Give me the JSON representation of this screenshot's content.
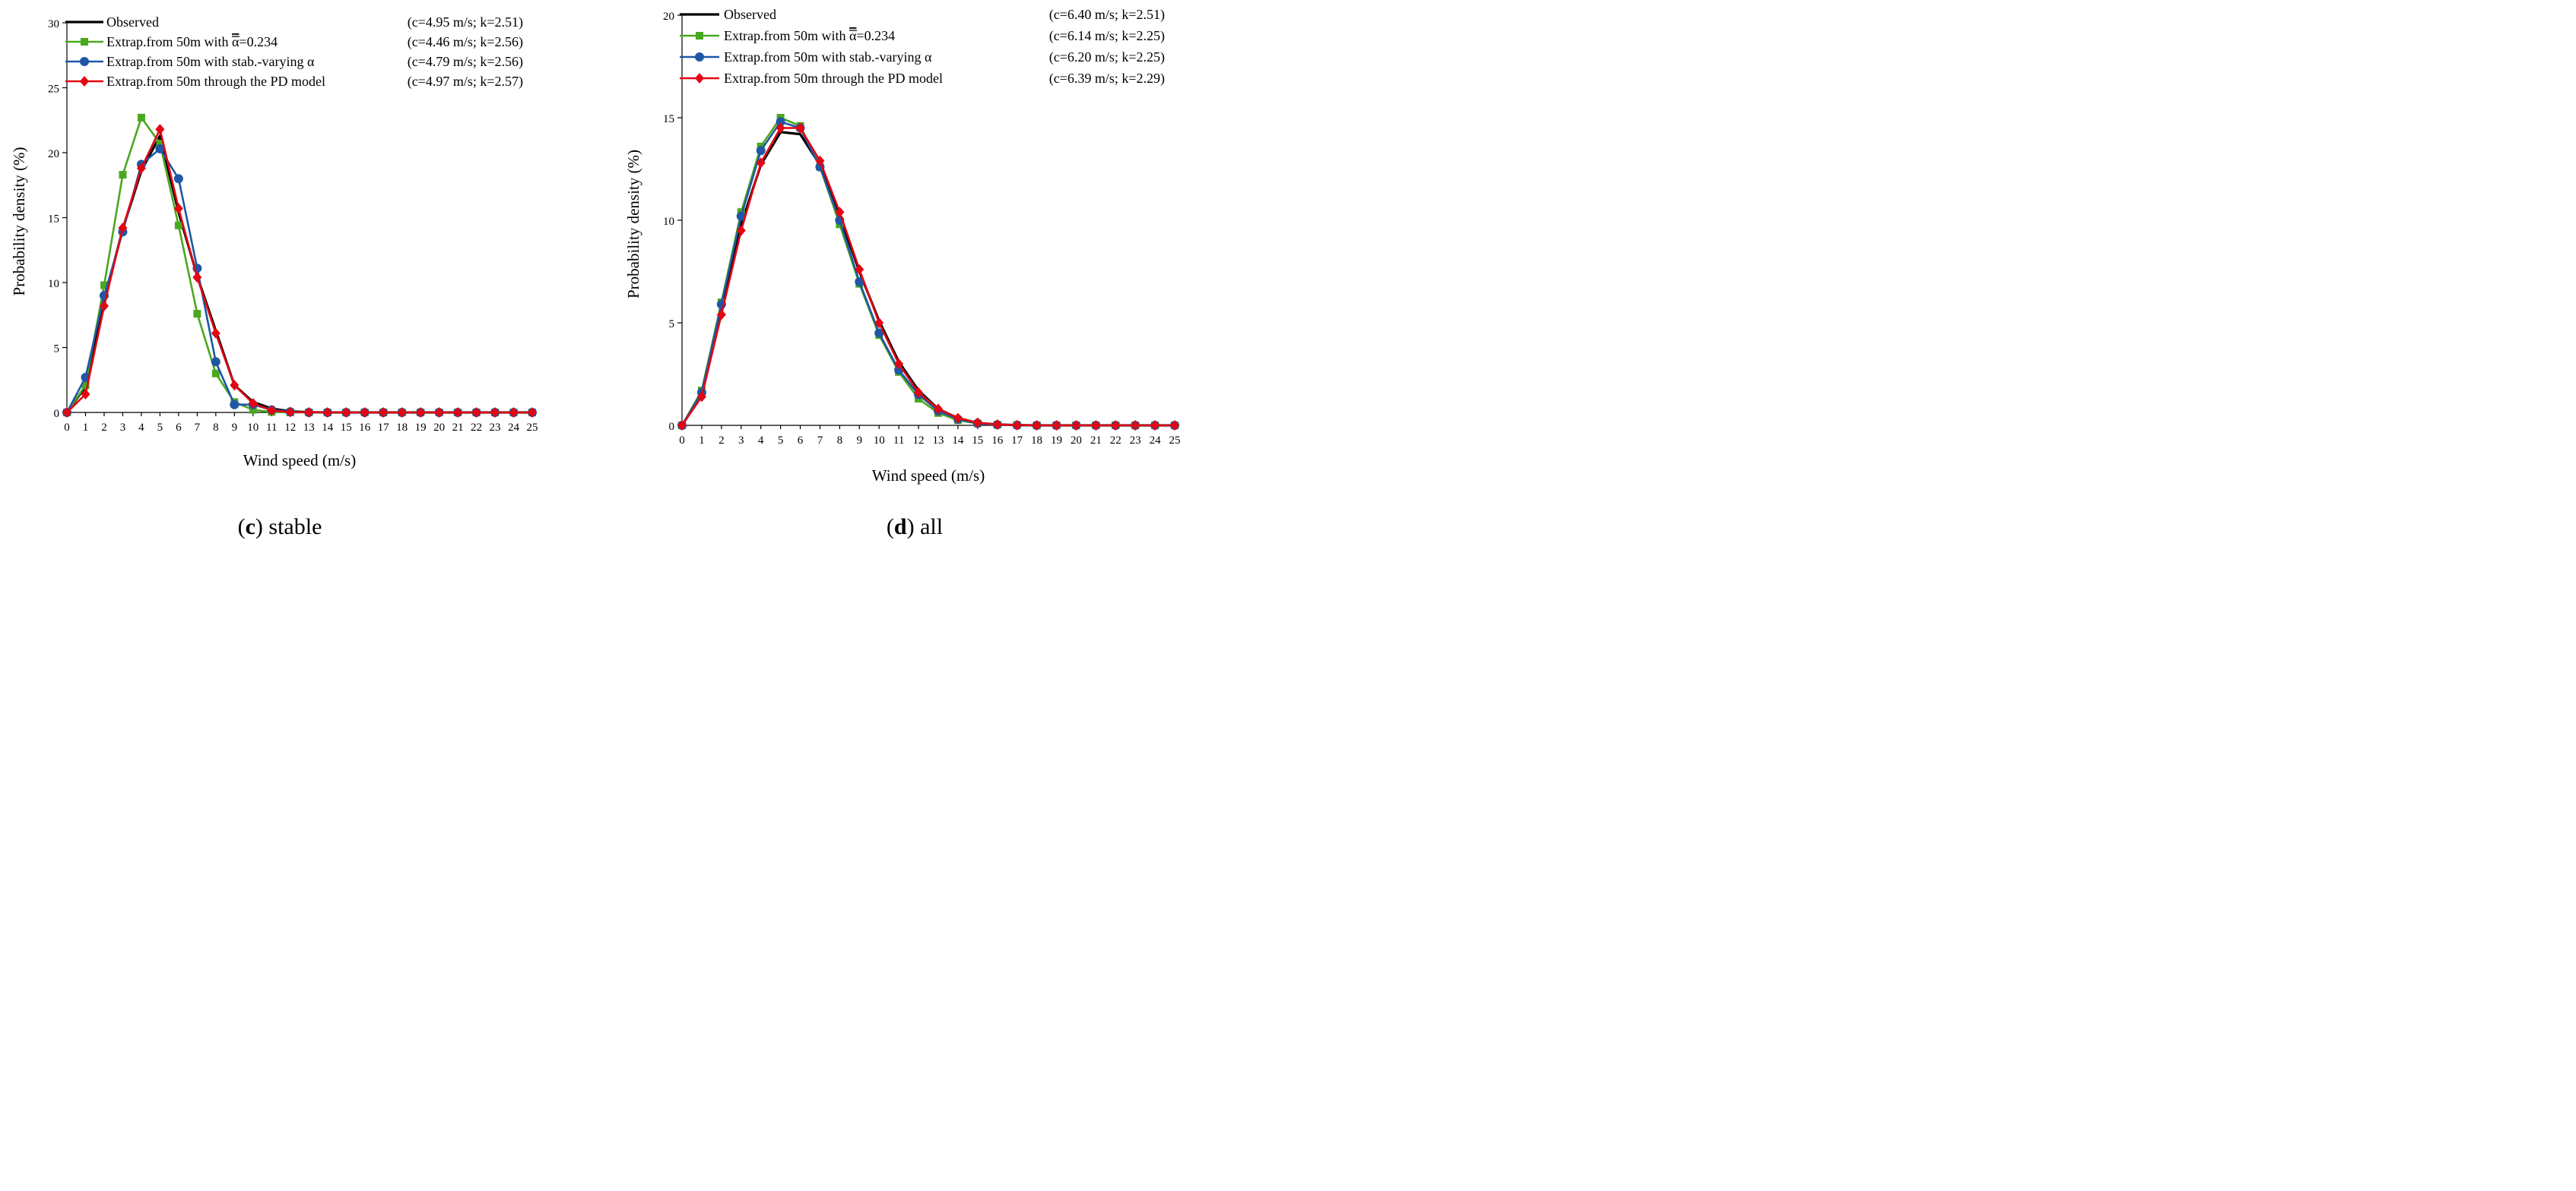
{
  "chart_data": [
    {
      "type": "line",
      "panel_label": "c",
      "caption": "stable",
      "xlabel": "Wind speed (m/s)",
      "ylabel": "Probability density (%)",
      "xlim": [
        0,
        25
      ],
      "ylim": [
        0,
        30
      ],
      "yticks": [
        0,
        5,
        10,
        15,
        20,
        25,
        30
      ],
      "x": [
        0,
        1,
        2,
        3,
        4,
        5,
        6,
        7,
        8,
        9,
        10,
        11,
        12,
        13,
        14,
        15,
        16,
        17,
        18,
        19,
        20,
        21,
        22,
        23,
        24,
        25
      ],
      "grid": false,
      "legend_position": "top",
      "series": [
        {
          "name": "Observed",
          "params": "(c=4.95 m/s; k=2.51)",
          "color": "#000000",
          "marker": "none",
          "values": [
            0,
            2.0,
            8.6,
            14.1,
            18.6,
            21.3,
            15.4,
            10.5,
            6.3,
            2.1,
            0.8,
            0.3,
            0.08,
            0.02,
            0,
            0,
            0,
            0,
            0,
            0,
            0,
            0,
            0,
            0,
            0,
            0
          ]
        },
        {
          "name_prefix": "Extrap.from 50m with ",
          "name_symbol": "α",
          "name_suffix": "=0.234",
          "params": "(c=4.46 m/s; k=2.56)",
          "color": "#4aa81e",
          "marker": "square",
          "values": [
            0,
            2.1,
            9.8,
            18.3,
            22.7,
            20.7,
            14.4,
            7.6,
            3.0,
            0.8,
            0.2,
            0.04,
            0,
            0,
            0,
            0,
            0,
            0,
            0,
            0,
            0,
            0,
            0,
            0,
            0,
            0
          ]
        },
        {
          "name": "Extrap.from 50m with stab.-varying α",
          "params": "(c=4.79 m/s; k=2.56)",
          "color": "#1f57a5",
          "marker": "circle",
          "values": [
            0,
            2.7,
            9.0,
            13.9,
            19.1,
            20.3,
            18.0,
            11.1,
            3.9,
            0.6,
            0.6,
            0.2,
            0.05,
            0,
            0,
            0,
            0,
            0,
            0,
            0,
            0,
            0,
            0,
            0,
            0,
            0
          ]
        },
        {
          "name": "Extrap.from 50m through the PD model",
          "params": "(c=4.97 m/s; k=2.57)",
          "color": "#e30613",
          "marker": "diamond",
          "values": [
            0,
            1.4,
            8.2,
            14.2,
            18.8,
            21.8,
            15.7,
            10.4,
            6.1,
            2.1,
            0.7,
            0.15,
            0.03,
            0.01,
            0,
            0,
            0,
            0,
            0,
            0,
            0,
            0,
            0,
            0,
            0,
            0
          ]
        }
      ]
    },
    {
      "type": "line",
      "panel_label": "d",
      "caption": "all",
      "xlabel": "Wind speed (m/s)",
      "ylabel": "Probability density (%)",
      "xlim": [
        0,
        25
      ],
      "ylim": [
        0,
        20
      ],
      "yticks": [
        0,
        5,
        10,
        15,
        20
      ],
      "x": [
        0,
        1,
        2,
        3,
        4,
        5,
        6,
        7,
        8,
        9,
        10,
        11,
        12,
        13,
        14,
        15,
        16,
        17,
        18,
        19,
        20,
        21,
        22,
        23,
        24,
        25
      ],
      "grid": false,
      "legend_position": "top",
      "series": [
        {
          "name": "Observed",
          "params": "(c=6.40 m/s; k=2.51)",
          "color": "#000000",
          "marker": "none",
          "values": [
            0,
            1.5,
            5.6,
            9.8,
            12.7,
            14.3,
            14.2,
            12.7,
            10.2,
            7.5,
            5.1,
            3.1,
            1.7,
            0.8,
            0.35,
            0.12,
            0.04,
            0.01,
            0,
            0,
            0,
            0,
            0,
            0,
            0,
            0
          ]
        },
        {
          "name_prefix": "Extrap.from 50m with ",
          "name_symbol": "α",
          "name_suffix": "=0.234",
          "params": "(c=6.14 m/s; k=2.25)",
          "color": "#4aa81e",
          "marker": "square",
          "values": [
            0,
            1.7,
            6.0,
            10.4,
            13.6,
            15.0,
            14.6,
            12.6,
            9.8,
            6.9,
            4.4,
            2.6,
            1.3,
            0.6,
            0.25,
            0.09,
            0.03,
            0.01,
            0,
            0,
            0,
            0,
            0,
            0,
            0,
            0
          ]
        },
        {
          "name": "Extrap.from 50m with stab.-varying α",
          "params": "(c=6.20 m/s; k=2.25)",
          "color": "#1f57a5",
          "marker": "circle",
          "values": [
            0,
            1.6,
            5.9,
            10.2,
            13.4,
            14.8,
            14.5,
            12.6,
            10.0,
            7.0,
            4.5,
            2.7,
            1.5,
            0.7,
            0.3,
            0.1,
            0.03,
            0.01,
            0,
            0,
            0,
            0,
            0,
            0,
            0,
            0
          ]
        },
        {
          "name": "Extrap.from 50m through the PD model",
          "params": "(c=6.39 m/s; k=2.29)",
          "color": "#e30613",
          "marker": "diamond",
          "values": [
            0,
            1.4,
            5.4,
            9.5,
            12.8,
            14.5,
            14.5,
            12.9,
            10.4,
            7.6,
            5.0,
            3.0,
            1.6,
            0.8,
            0.35,
            0.13,
            0.04,
            0.01,
            0,
            0,
            0,
            0,
            0,
            0,
            0,
            0
          ]
        }
      ]
    }
  ]
}
